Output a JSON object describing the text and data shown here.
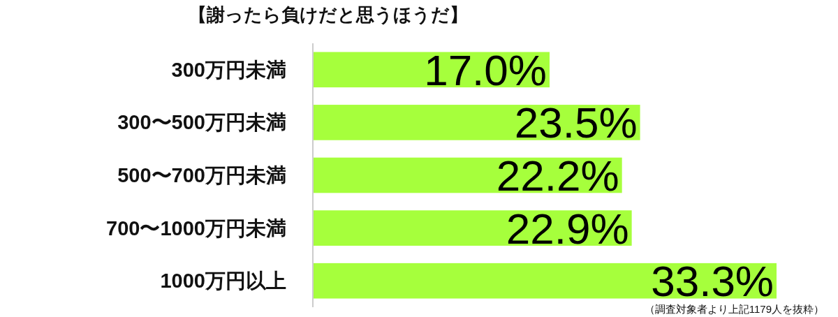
{
  "chart_data": {
    "type": "bar",
    "orientation": "horizontal",
    "title": "【謝ったら負けだと思うほうだ】",
    "categories": [
      "300万円未満",
      "300〜500万円未満",
      "500〜700万円未満",
      "700〜1000万円未満",
      "1000万円以上"
    ],
    "values": [
      17.0,
      23.5,
      22.2,
      22.9,
      33.3
    ],
    "value_labels": [
      "17.0%",
      "23.5%",
      "22.2%",
      "22.9%",
      "33.3%"
    ],
    "color": "#a6ff3c",
    "annotations": [
      "（調査対象者より上記1179人を抜粋）"
    ]
  }
}
